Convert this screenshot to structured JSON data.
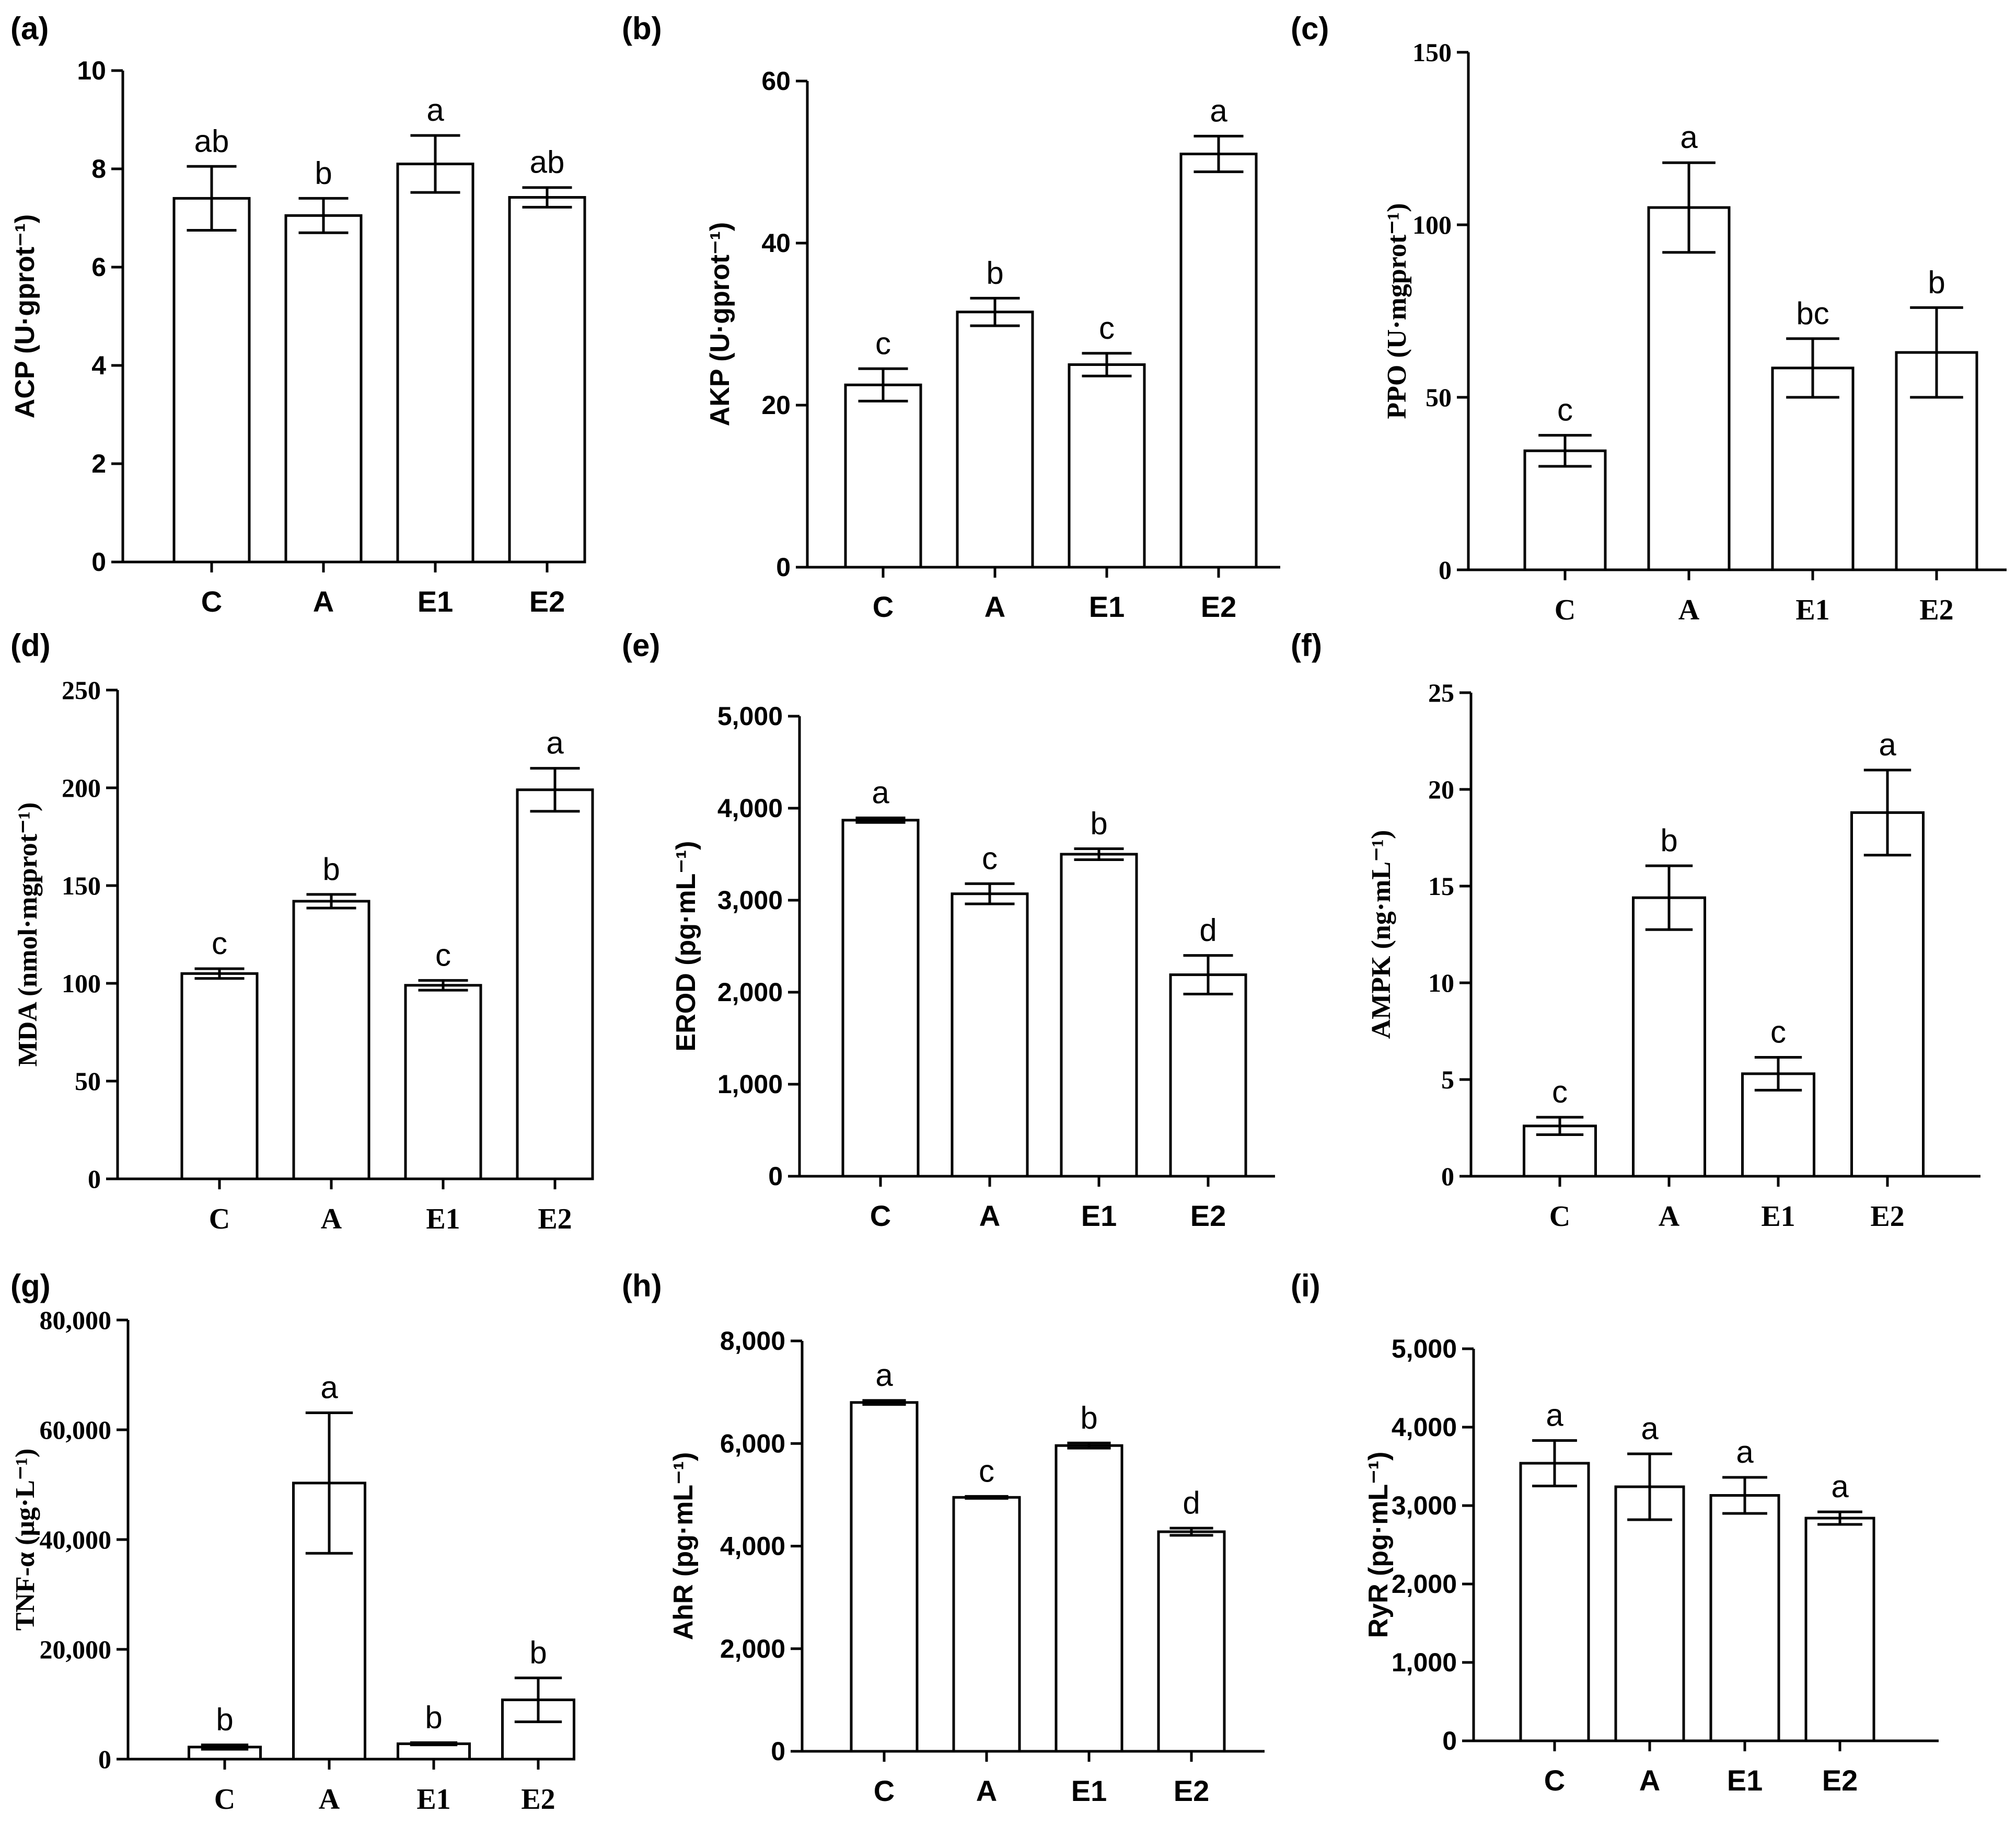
{
  "chart_data": [
    {
      "panel": "(a)",
      "type": "bar",
      "ylabel": "ACP (U·gprot⁻¹)",
      "categories": [
        "C",
        "A",
        "E1",
        "E2"
      ],
      "values": [
        7.4,
        7.05,
        8.1,
        7.42
      ],
      "errors": [
        0.65,
        0.35,
        0.58,
        0.2
      ],
      "letters": [
        "ab",
        "b",
        "a",
        "ab"
      ],
      "ylim": [
        0,
        10
      ],
      "ticks": [
        0,
        2,
        4,
        6,
        8,
        10
      ],
      "tick_labels": [
        "0",
        "2",
        "4",
        "6",
        "8",
        "10"
      ]
    },
    {
      "panel": "(b)",
      "type": "bar",
      "ylabel": "AKP (U·gprot⁻¹)",
      "categories": [
        "C",
        "A",
        "E1",
        "E2"
      ],
      "values": [
        22.5,
        31.5,
        25.0,
        51.0
      ],
      "errors": [
        2.0,
        1.7,
        1.4,
        2.2
      ],
      "letters": [
        "c",
        "b",
        "c",
        "a"
      ],
      "ylim": [
        0,
        60
      ],
      "ticks": [
        0,
        20,
        40,
        60
      ],
      "tick_labels": [
        "0",
        "20",
        "40",
        "60"
      ]
    },
    {
      "panel": "(c)",
      "type": "bar",
      "ylabel": "PPO (U·mgprot⁻¹)",
      "categories": [
        "C",
        "A",
        "E1",
        "E2"
      ],
      "values": [
        34.5,
        105.0,
        58.5,
        63.0
      ],
      "errors": [
        4.5,
        13.0,
        8.5,
        13.0
      ],
      "letters": [
        "c",
        "a",
        "bc",
        "b"
      ],
      "ylim": [
        0,
        150
      ],
      "ticks": [
        0,
        50,
        100,
        150
      ],
      "tick_labels": [
        "0",
        "50",
        "100",
        "150"
      ]
    },
    {
      "panel": "(d)",
      "type": "bar",
      "ylabel": "MDA (nmol·mgprot⁻¹)",
      "categories": [
        "C",
        "A",
        "E1",
        "E2"
      ],
      "values": [
        105,
        142,
        99,
        199
      ],
      "errors": [
        2.5,
        3.5,
        2.5,
        11
      ],
      "letters": [
        "c",
        "b",
        "c",
        "a"
      ],
      "ylim": [
        0,
        250
      ],
      "ticks": [
        0,
        50,
        100,
        150,
        200,
        250
      ],
      "tick_labels": [
        "0",
        "50",
        "100",
        "150",
        "200",
        "250"
      ]
    },
    {
      "panel": "(e)",
      "type": "bar",
      "ylabel": "EROD (pg·mL⁻¹)",
      "categories": [
        "C",
        "A",
        "E1",
        "E2"
      ],
      "values": [
        3870,
        3070,
        3500,
        2190
      ],
      "errors": [
        25,
        110,
        60,
        210
      ],
      "letters": [
        "a",
        "c",
        "b",
        "d"
      ],
      "ylim": [
        0,
        5000
      ],
      "ticks": [
        0,
        1000,
        2000,
        3000,
        4000,
        5000
      ],
      "tick_labels": [
        "0",
        "1,000",
        "2,000",
        "3,000",
        "4,000",
        "5,000"
      ]
    },
    {
      "panel": "(f)",
      "type": "bar",
      "ylabel": "AMPK (ng·mL⁻¹)",
      "categories": [
        "C",
        "A",
        "E1",
        "E2"
      ],
      "values": [
        2.6,
        14.4,
        5.3,
        18.8
      ],
      "errors": [
        0.45,
        1.65,
        0.85,
        2.2
      ],
      "letters": [
        "c",
        "b",
        "c",
        "a"
      ],
      "ylim": [
        0,
        25
      ],
      "ticks": [
        0,
        5,
        10,
        15,
        20,
        25
      ],
      "tick_labels": [
        "0",
        "5",
        "10",
        "15",
        "20",
        "25"
      ]
    },
    {
      "panel": "(g)",
      "type": "bar",
      "ylabel": "TNF-α (μg·L⁻¹)",
      "categories": [
        "C",
        "A",
        "E1",
        "E2"
      ],
      "values": [
        2200,
        50300,
        2800,
        10800
      ],
      "errors": [
        400,
        12800,
        200,
        4000
      ],
      "letters": [
        "b",
        "a",
        "b",
        "b"
      ],
      "ylim": [
        0,
        80000
      ],
      "ticks": [
        0,
        20000,
        40000,
        60000,
        80000
      ],
      "tick_labels": [
        "0",
        "20,000",
        "40,000",
        "60,000",
        "80,000"
      ]
    },
    {
      "panel": "(h)",
      "type": "bar",
      "ylabel": "AhR (pg·mL⁻¹)",
      "categories": [
        "C",
        "A",
        "E1",
        "E2"
      ],
      "values": [
        6800,
        4950,
        5960,
        4280
      ],
      "errors": [
        40,
        20,
        50,
        70
      ],
      "letters": [
        "a",
        "c",
        "b",
        "d"
      ],
      "ylim": [
        0,
        8000
      ],
      "ticks": [
        0,
        2000,
        4000,
        6000,
        8000
      ],
      "tick_labels": [
        "0",
        "2,000",
        "4,000",
        "6,000",
        "8,000"
      ]
    },
    {
      "panel": "(i)",
      "type": "bar",
      "ylabel": "RyR (pg·mL⁻¹)",
      "categories": [
        "C",
        "A",
        "E1",
        "E2"
      ],
      "values": [
        3540,
        3240,
        3130,
        2840
      ],
      "errors": [
        290,
        420,
        230,
        80
      ],
      "letters": [
        "a",
        "a",
        "a",
        "a"
      ],
      "ylim": [
        0,
        5000
      ],
      "ticks": [
        0,
        1000,
        2000,
        3000,
        4000,
        5000
      ],
      "tick_labels": [
        "0",
        "1,000",
        "2,000",
        "3,000",
        "4,000",
        "5,000"
      ]
    }
  ]
}
